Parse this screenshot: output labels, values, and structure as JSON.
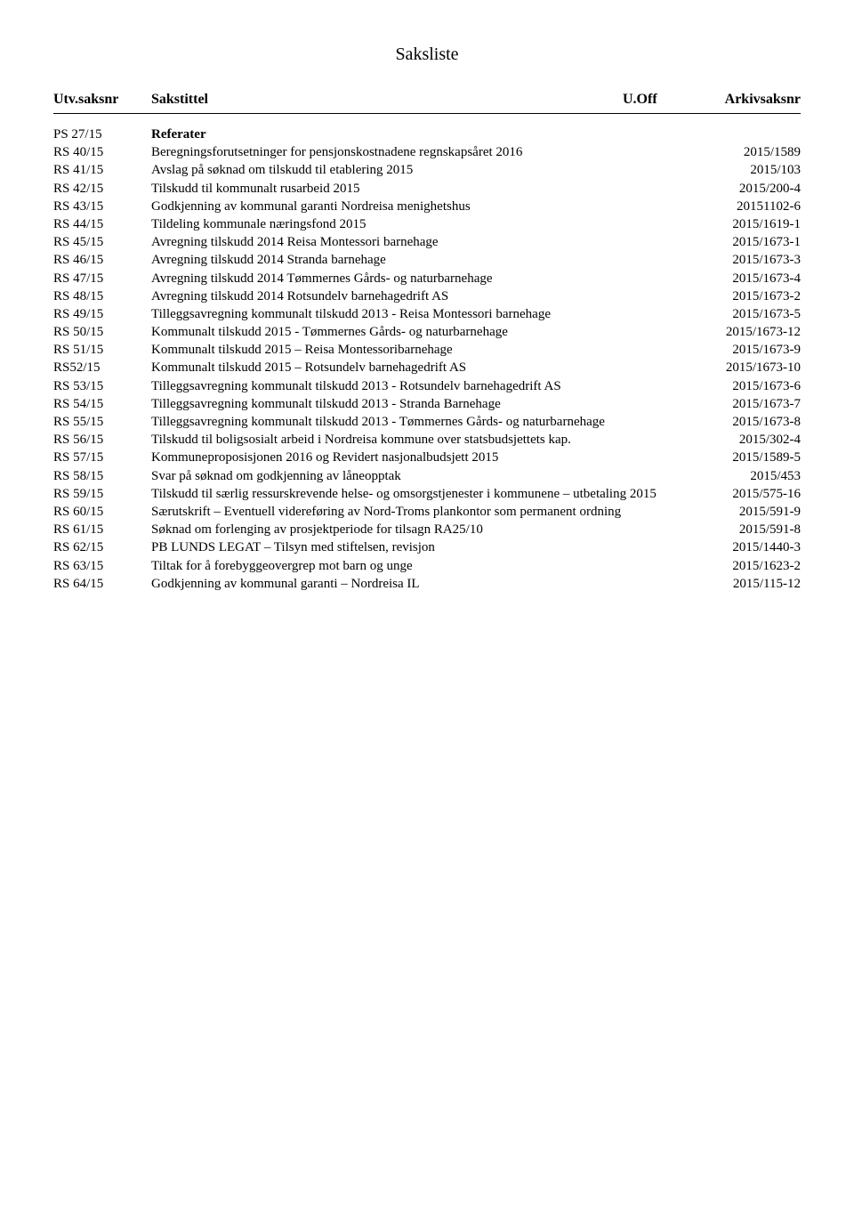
{
  "title": "Saksliste",
  "header": {
    "saksnr": "Utv.saksnr",
    "sakstittel": "Sakstittel",
    "uoff": "U.Off",
    "arkiv": "Arkivsaksnr"
  },
  "rows": [
    {
      "saksnr": "PS 27/15",
      "title": "Referater",
      "arkiv": "",
      "bold": true
    },
    {
      "saksnr": "RS 40/15",
      "title": "Beregningsforutsetninger for pensjonskostnadene regnskapsåret 2016",
      "arkiv": "2015/1589"
    },
    {
      "saksnr": "RS 41/15",
      "title": "Avslag på søknad om tilskudd til etablering 2015",
      "arkiv": "2015/103"
    },
    {
      "saksnr": "RS 42/15",
      "title": "Tilskudd til kommunalt rusarbeid 2015",
      "arkiv": "2015/200-4"
    },
    {
      "saksnr": "RS 43/15",
      "title": "Godkjenning av kommunal garanti Nordreisa menighetshus",
      "arkiv": "20151102-6"
    },
    {
      "saksnr": "RS 44/15",
      "title": "Tildeling kommunale næringsfond 2015",
      "arkiv": "2015/1619-1"
    },
    {
      "saksnr": "RS 45/15",
      "title": "Avregning tilskudd 2014 Reisa Montessori barnehage",
      "arkiv": "2015/1673-1"
    },
    {
      "saksnr": "RS 46/15",
      "title": "Avregning tilskudd 2014 Stranda barnehage",
      "arkiv": "2015/1673-3"
    },
    {
      "saksnr": "RS 47/15",
      "title": "Avregning tilskudd 2014 Tømmernes Gårds- og naturbarnehage",
      "arkiv": "2015/1673-4"
    },
    {
      "saksnr": "RS 48/15",
      "title": "Avregning tilskudd 2014 Rotsundelv barnehagedrift AS",
      "arkiv": "2015/1673-2"
    },
    {
      "saksnr": "RS 49/15",
      "title": "Tilleggsavregning kommunalt tilskudd 2013 - Reisa Montessori barnehage",
      "arkiv": "2015/1673-5"
    },
    {
      "saksnr": "RS 50/15",
      "title": "Kommunalt tilskudd 2015 - Tømmernes Gårds- og naturbarnehage",
      "arkiv": "2015/1673-12"
    },
    {
      "saksnr": "RS 51/15",
      "title": "Kommunalt tilskudd 2015 – Reisa Montessoribarnehage",
      "arkiv": "2015/1673-9"
    },
    {
      "saksnr": "RS52/15",
      "title": "Kommunalt tilskudd 2015 – Rotsundelv barnehagedrift AS",
      "arkiv": "2015/1673-10"
    },
    {
      "saksnr": "RS 53/15",
      "title": "Tilleggsavregning kommunalt tilskudd 2013 - Rotsundelv barnehagedrift AS",
      "arkiv": "2015/1673-6"
    },
    {
      "saksnr": "RS 54/15",
      "title": "Tilleggsavregning kommunalt tilskudd 2013 - Stranda Barnehage",
      "arkiv": "2015/1673-7"
    },
    {
      "saksnr": "RS 55/15",
      "title": "Tilleggsavregning kommunalt tilskudd 2013 - Tømmernes Gårds- og naturbarnehage",
      "arkiv": "2015/1673-8"
    },
    {
      "saksnr": "RS 56/15",
      "title": "Tilskudd til boligsosialt arbeid i Nordreisa kommune over statsbudsjettets kap.",
      "arkiv": "2015/302-4"
    },
    {
      "saksnr": "RS 57/15",
      "title": "Kommuneproposisjonen 2016 og Revidert nasjonalbudsjett 2015",
      "arkiv": "2015/1589-5"
    },
    {
      "saksnr": "RS 58/15",
      "title": "Svar på søknad om godkjenning av låneopptak",
      "arkiv": "2015/453"
    },
    {
      "saksnr": "RS 59/15",
      "title": "Tilskudd til særlig ressurskrevende helse- og omsorgstjenester i kommunene – utbetaling 2015",
      "arkiv": "2015/575-16"
    },
    {
      "saksnr": "RS 60/15",
      "title": "Særutskrift – Eventuell videreføring av Nord-Troms plankontor som permanent ordning",
      "arkiv": "2015/591-9"
    },
    {
      "saksnr": "RS 61/15",
      "title": "Søknad om forlenging av prosjektperiode for tilsagn RA25/10",
      "arkiv": "2015/591-8"
    },
    {
      "saksnr": "RS 62/15",
      "title": "PB LUNDS LEGAT – Tilsyn med stiftelsen, revisjon",
      "arkiv": "2015/1440-3"
    },
    {
      "saksnr": "RS 63/15",
      "title": "Tiltak for å forebyggeovergrep mot barn og unge",
      "arkiv": "2015/1623-2"
    },
    {
      "saksnr": "RS 64/15",
      "title": "Godkjenning av kommunal garanti – Nordreisa IL",
      "arkiv": "2015/115-12"
    }
  ]
}
